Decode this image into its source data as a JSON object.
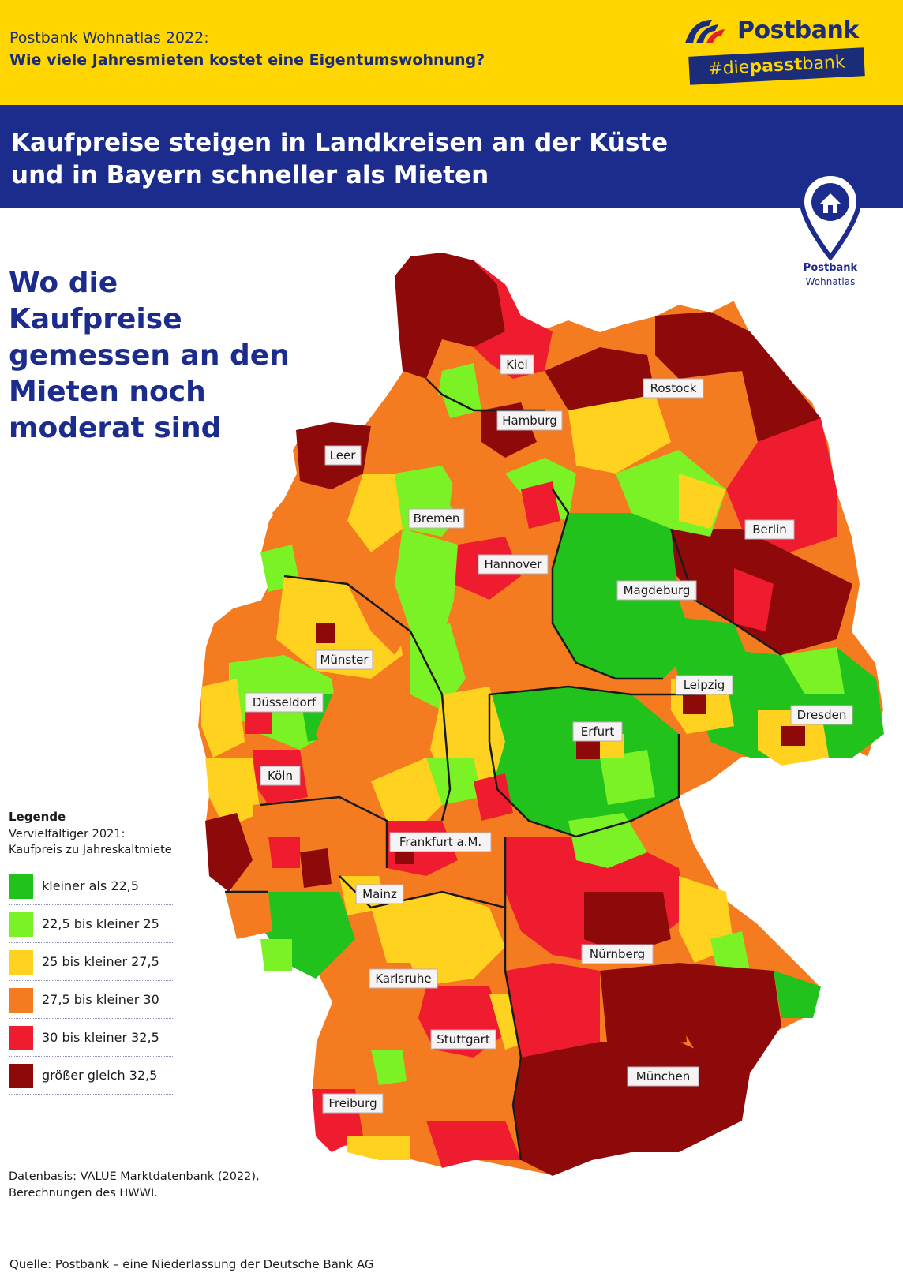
{
  "header": {
    "kicker": "Postbank Wohnatlas 2022:",
    "question": "Wie viele Jahresmieten kostet eine Eigentumswohnung?",
    "headline_line1": "Kaufpreise steigen in Landkreisen an der Küste",
    "headline_line2": "und in Bayern schneller als Mieten"
  },
  "brand": {
    "name": "Postbank",
    "tag_prefix": "#die",
    "tag_bold": "passt",
    "tag_suffix": "bank",
    "badge_name": "Postbank",
    "badge_sub": "Wohnatlas"
  },
  "subhead": {
    "lines": [
      "Wo die Kaufpreise",
      "gemessen an den",
      "Mieten noch",
      "moderat sind"
    ]
  },
  "legend": {
    "title": "Legende",
    "desc_line1": "Vervielfältiger 2021:",
    "desc_line2": "Kaufpreis zu Jahreskaltmiete",
    "items": [
      {
        "label": "kleiner als 22,5",
        "color": "#22c21c"
      },
      {
        "label": "22,5 bis kleiner 25",
        "color": "#7bf225"
      },
      {
        "label": "25 bis kleiner 27,5",
        "color": "#ffd21f"
      },
      {
        "label": "27,5 bis kleiner 30",
        "color": "#f47b20"
      },
      {
        "label": "30 bis kleiner 32,5",
        "color": "#ee1c2e"
      },
      {
        "label": "größer gleich 32,5",
        "color": "#8e0a0a"
      }
    ]
  },
  "cities": {
    "kiel": "Kiel",
    "rostock": "Rostock",
    "hamburg": "Hamburg",
    "leer": "Leer",
    "bremen": "Bremen",
    "berlin": "Berlin",
    "hannover": "Hannover",
    "magdeburg": "Magdeburg",
    "muenster": "Münster",
    "leipzig": "Leipzig",
    "duesseldorf": "Düsseldorf",
    "dresden": "Dresden",
    "erfurt": "Erfurt",
    "koeln": "Köln",
    "frankfurt": "Frankfurt a.M.",
    "mainz": "Mainz",
    "nuernberg": "Nürnberg",
    "karlsruhe": "Karlsruhe",
    "stuttgart": "Stuttgart",
    "muenchen": "München",
    "freiburg": "Freiburg"
  },
  "source": {
    "line1": "Datenbasis: VALUE Marktdatenbank (2022),",
    "line2": "Berechnungen des HWWI.",
    "footer": "Quelle: Postbank – eine Niederlassung der Deutsche Bank AG"
  }
}
